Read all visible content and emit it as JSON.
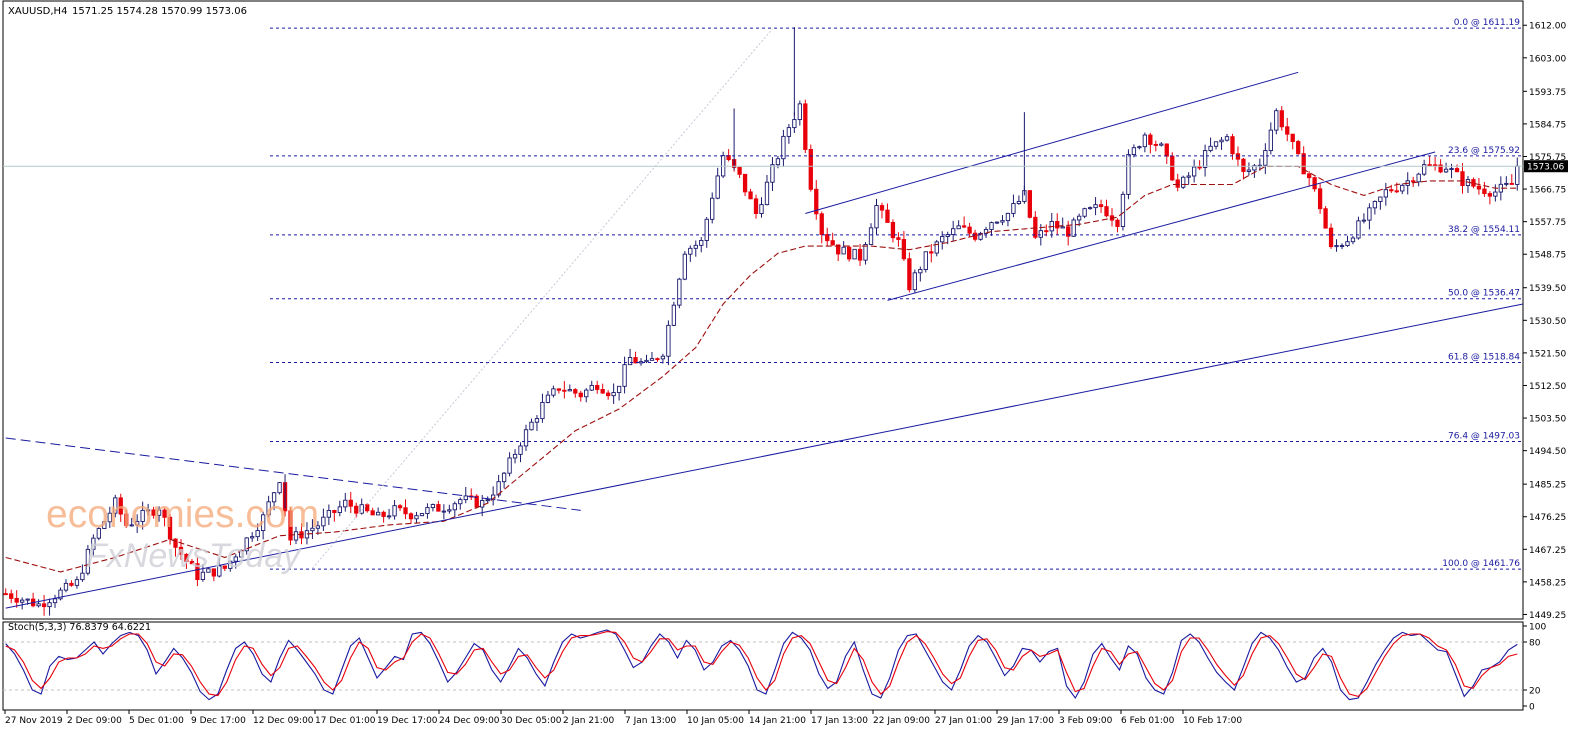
{
  "header": {
    "symbol_tf": "XAUUSD,H4",
    "ohlc": "1571.25 1574.28 1570.99 1573.06"
  },
  "watermark": {
    "line1": "economies.com",
    "line2": "FxNewsToday"
  },
  "colors": {
    "bull": "#1a1a6e",
    "bear": "#e8000b",
    "ma": "#9e1010",
    "fib": "#1a1aa0",
    "trend": "#1a1aa0",
    "stoch_main": "#1a1aa0",
    "stoch_signal": "#e8000b",
    "watermark": "#f5a878",
    "watermark2": "#cfcfd6"
  },
  "chart_data": [
    {
      "type": "candlestick",
      "symbol": "XAUUSD",
      "timeframe": "H4",
      "last_price": 1573.06,
      "last_price_label": "1573.06",
      "y_ticks": [
        "1612.00",
        "1603.00",
        "1593.75",
        "1584.75",
        "1575.75",
        "1566.75",
        "1557.75",
        "1548.75",
        "1539.50",
        "1530.50",
        "1521.50",
        "1512.50",
        "1503.50",
        "1494.50",
        "1485.25",
        "1476.25",
        "1467.25",
        "1458.25",
        "1449.25"
      ],
      "ylim": [
        1448,
        1614
      ],
      "x_ticks": [
        "27 Nov 2019",
        "2 Dec 09:00",
        "5 Dec 01:00",
        "9 Dec 17:00",
        "12 Dec 09:00",
        "17 Dec 01:00",
        "19 Dec 17:00",
        "24 Dec 09:00",
        "30 Dec 05:00",
        "2 Jan 21:00",
        "7 Jan 13:00",
        "10 Jan 05:00",
        "14 Jan 21:00",
        "17 Jan 13:00",
        "22 Jan 09:00",
        "27 Jan 01:00",
        "29 Jan 17:00",
        "3 Feb 09:00",
        "6 Feb 01:00",
        "10 Feb 17:00"
      ],
      "close_path": [
        [
          0,
          1455
        ],
        [
          6,
          1452
        ],
        [
          13,
          1458
        ],
        [
          16,
          1470
        ],
        [
          20,
          1480
        ],
        [
          22,
          1474
        ],
        [
          28,
          1479
        ],
        [
          31,
          1468
        ],
        [
          35,
          1460
        ],
        [
          40,
          1462
        ],
        [
          47,
          1476
        ],
        [
          50,
          1487
        ],
        [
          52,
          1470
        ],
        [
          57,
          1474
        ],
        [
          62,
          1480
        ],
        [
          65,
          1478
        ],
        [
          68,
          1476
        ],
        [
          71,
          1478
        ],
        [
          74,
          1477
        ],
        [
          77,
          1478
        ],
        [
          80,
          1479
        ],
        [
          83,
          1481
        ],
        [
          87,
          1480
        ],
        [
          90,
          1485
        ],
        [
          94,
          1497
        ],
        [
          98,
          1507
        ],
        [
          101,
          1512
        ],
        [
          105,
          1510
        ],
        [
          108,
          1513
        ],
        [
          111,
          1510
        ],
        [
          114,
          1520
        ],
        [
          117,
          1518
        ],
        [
          120,
          1522
        ],
        [
          124,
          1550
        ],
        [
          127,
          1552
        ],
        [
          129,
          1565
        ],
        [
          131,
          1576
        ],
        [
          134,
          1570
        ],
        [
          137,
          1560
        ],
        [
          140,
          1572
        ],
        [
          143,
          1584
        ],
        [
          145,
          1590
        ],
        [
          147,
          1568
        ],
        [
          149,
          1555
        ],
        [
          152,
          1550
        ],
        [
          156,
          1548
        ],
        [
          159,
          1562
        ],
        [
          163,
          1552
        ],
        [
          165,
          1540
        ],
        [
          168,
          1548
        ],
        [
          171,
          1553
        ],
        [
          174,
          1556
        ],
        [
          177,
          1554
        ],
        [
          180,
          1558
        ],
        [
          183,
          1560
        ],
        [
          186,
          1565
        ],
        [
          188,
          1553
        ],
        [
          191,
          1557
        ],
        [
          194,
          1555
        ],
        [
          197,
          1560
        ],
        [
          200,
          1562
        ],
        [
          203,
          1558
        ],
        [
          205,
          1575
        ],
        [
          208,
          1582
        ],
        [
          211,
          1578
        ],
        [
          214,
          1567
        ],
        [
          217,
          1572
        ],
        [
          220,
          1578
        ],
        [
          223,
          1581
        ],
        [
          226,
          1571
        ],
        [
          229,
          1574
        ],
        [
          232,
          1588
        ],
        [
          234,
          1582
        ],
        [
          236,
          1575
        ],
        [
          238,
          1570
        ],
        [
          240,
          1562
        ],
        [
          242,
          1550
        ],
        [
          245,
          1553
        ],
        [
          249,
          1560
        ],
        [
          252,
          1566
        ],
        [
          256,
          1569
        ],
        [
          259,
          1573
        ],
        [
          263,
          1573
        ],
        [
          266,
          1569
        ],
        [
          269,
          1567
        ],
        [
          272,
          1566
        ],
        [
          275,
          1568
        ],
        [
          276,
          1573
        ]
      ],
      "ma_path": [
        [
          0,
          1465
        ],
        [
          10,
          1461
        ],
        [
          20,
          1465
        ],
        [
          30,
          1470
        ],
        [
          40,
          1465
        ],
        [
          50,
          1471
        ],
        [
          60,
          1472
        ],
        [
          70,
          1474
        ],
        [
          80,
          1475
        ],
        [
          88,
          1480
        ],
        [
          96,
          1490
        ],
        [
          104,
          1500
        ],
        [
          112,
          1506
        ],
        [
          120,
          1515
        ],
        [
          126,
          1523
        ],
        [
          131,
          1535
        ],
        [
          136,
          1543
        ],
        [
          141,
          1549
        ],
        [
          146,
          1551
        ],
        [
          152,
          1551
        ],
        [
          158,
          1551
        ],
        [
          165,
          1550
        ],
        [
          172,
          1552
        ],
        [
          180,
          1555
        ],
        [
          188,
          1556
        ],
        [
          196,
          1557
        ],
        [
          203,
          1559
        ],
        [
          208,
          1565
        ],
        [
          213,
          1568
        ],
        [
          218,
          1568
        ],
        [
          224,
          1568
        ],
        [
          230,
          1573
        ],
        [
          236,
          1573
        ],
        [
          242,
          1568
        ],
        [
          248,
          1565
        ],
        [
          254,
          1568
        ],
        [
          260,
          1569
        ],
        [
          266,
          1569
        ],
        [
          272,
          1567
        ],
        [
          276,
          1567
        ]
      ],
      "fibonacci": [
        {
          "label": "0.0 @ 1611.19",
          "price": 1611.19
        },
        {
          "label": "23.6 @ 1575.92",
          "price": 1575.92
        },
        {
          "label": "38.2 @ 1554.11",
          "price": 1554.11
        },
        {
          "label": "50.0 @ 1536.47",
          "price": 1536.47
        },
        {
          "label": "61.8 @ 1518.84",
          "price": 1518.84
        },
        {
          "label": "76.4 @ 1497.03",
          "price": 1497.03
        },
        {
          "label": "100.0 @ 1461.76",
          "price": 1461.76
        }
      ],
      "trendlines": [
        {
          "style": "solid",
          "from": [
            0,
            1451
          ],
          "to": [
            330,
            1535
          ]
        },
        {
          "style": "dashed",
          "from": [
            0,
            1498
          ],
          "to": [
            105,
            1478
          ]
        },
        {
          "style": "solid",
          "from": [
            146,
            1560
          ],
          "to": [
            236,
            1599
          ]
        },
        {
          "style": "solid",
          "from": [
            161,
            1536
          ],
          "to": [
            261,
            1577
          ]
        },
        {
          "style": "dotted",
          "from": [
            56,
            1462
          ],
          "to": [
            140,
            1611
          ]
        }
      ]
    },
    {
      "type": "line",
      "indicator_label": "Stoch(5,3,3) 76.8379 64.6221",
      "y_ticks": [
        "100",
        "80",
        "20",
        "0"
      ],
      "levels": [
        80,
        20
      ],
      "ylim": [
        0,
        100
      ],
      "series": [
        {
          "name": "main",
          "values": [
            78,
            65,
            45,
            20,
            15,
            50,
            62,
            58,
            60,
            70,
            80,
            65,
            78,
            88,
            92,
            88,
            70,
            40,
            55,
            72,
            60,
            42,
            18,
            8,
            15,
            45,
            72,
            80,
            65,
            40,
            30,
            60,
            82,
            70,
            55,
            40,
            20,
            15,
            45,
            75,
            85,
            60,
            35,
            48,
            62,
            58,
            90,
            92,
            78,
            55,
            30,
            42,
            60,
            78,
            70,
            45,
            30,
            50,
            72,
            60,
            40,
            25,
            55,
            80,
            90,
            85,
            88,
            92,
            95,
            90,
            70,
            48,
            55,
            75,
            90,
            80,
            60,
            82,
            70,
            45,
            55,
            75,
            82,
            70,
            50,
            20,
            15,
            45,
            78,
            92,
            85,
            70,
            40,
            22,
            30,
            62,
            80,
            45,
            15,
            10,
            35,
            70,
            88,
            90,
            70,
            50,
            30,
            20,
            45,
            75,
            88,
            80,
            60,
            38,
            50,
            72,
            70,
            55,
            68,
            72,
            25,
            10,
            30,
            65,
            78,
            60,
            45,
            75,
            65,
            35,
            20,
            15,
            42,
            82,
            90,
            80,
            60,
            42,
            30,
            20,
            48,
            78,
            92,
            85,
            70,
            48,
            30,
            35,
            60,
            72,
            55,
            20,
            8,
            10,
            30,
            52,
            70,
            85,
            92,
            88,
            90,
            80,
            70,
            68,
            40,
            12,
            25,
            45,
            48,
            55,
            70,
            77
          ]
        },
        {
          "name": "signal",
          "values": [
            75,
            70,
            55,
            32,
            22,
            35,
            55,
            60,
            60,
            65,
            75,
            72,
            75,
            84,
            90,
            90,
            78,
            55,
            50,
            65,
            64,
            50,
            30,
            15,
            13,
            30,
            58,
            75,
            72,
            52,
            38,
            48,
            72,
            75,
            62,
            48,
            30,
            20,
            32,
            60,
            80,
            72,
            48,
            45,
            55,
            60,
            80,
            90,
            85,
            65,
            42,
            40,
            52,
            70,
            72,
            55,
            40,
            45,
            62,
            64,
            48,
            35,
            45,
            68,
            85,
            88,
            88,
            90,
            93,
            92,
            80,
            60,
            55,
            68,
            84,
            84,
            70,
            75,
            75,
            55,
            52,
            68,
            80,
            76,
            60,
            35,
            20,
            32,
            65,
            85,
            88,
            78,
            55,
            32,
            28,
            48,
            72,
            58,
            30,
            15,
            25,
            55,
            80,
            88,
            78,
            60,
            40,
            28,
            35,
            62,
            82,
            84,
            70,
            48,
            45,
            62,
            70,
            62,
            65,
            70,
            42,
            18,
            22,
            50,
            72,
            68,
            52,
            65,
            68,
            48,
            28,
            20,
            32,
            68,
            85,
            85,
            70,
            52,
            38,
            26,
            38,
            65,
            85,
            88,
            78,
            60,
            40,
            33,
            48,
            65,
            62,
            35,
            15,
            12,
            22,
            42,
            62,
            78,
            88,
            90,
            90,
            85,
            75,
            70,
            52,
            25,
            22,
            38,
            48,
            52,
            62,
            65
          ]
        }
      ]
    }
  ]
}
